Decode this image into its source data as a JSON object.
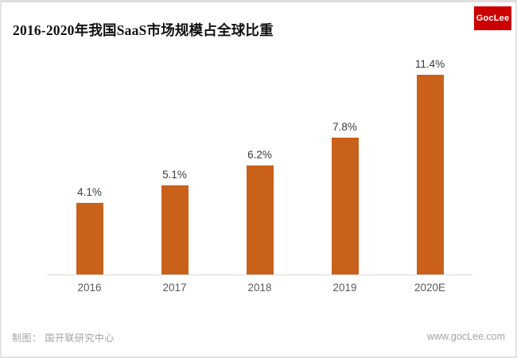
{
  "header": {
    "title": "2016-2020年我国SaaS市场规模占全球比重",
    "logo_text": "GocLee"
  },
  "footer": {
    "credit": "制图： 国开联研究中心",
    "website": "www.gocLee.com"
  },
  "colors": {
    "bar": "#c9611b",
    "logo_bg": "#cc0000",
    "axis": "#dcdcdc",
    "value_label": "#3a3a3a",
    "year_label": "#595959",
    "footer_text": "#a3a3a3"
  },
  "chart_data": {
    "type": "bar",
    "title": "2016-2020年我国SaaS市场规模占全球比重",
    "categories": [
      "2016",
      "2017",
      "2018",
      "2019",
      "2020E"
    ],
    "values": [
      4.1,
      5.1,
      6.2,
      7.8,
      11.4
    ],
    "value_labels": [
      "4.1%",
      "5.1%",
      "6.2%",
      "7.8%",
      "11.4%"
    ],
    "unit": "%",
    "xlabel": "",
    "ylabel": "",
    "ylim": [
      0,
      12
    ],
    "grid": false,
    "legend": false
  }
}
